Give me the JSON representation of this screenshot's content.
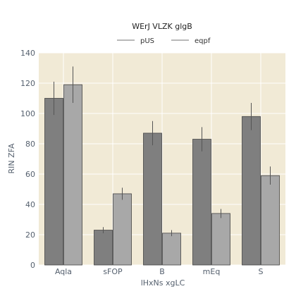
{
  "chart_data": {
    "type": "bar",
    "title": "WErJ VLZK glgB",
    "xlabel": "lHxNs xgLC",
    "ylabel": "RIN  ZFA",
    "categories": [
      "Aqla",
      "sFOP",
      "B",
      "mEq",
      "S"
    ],
    "ylim": [
      0,
      140
    ],
    "yticks": [
      0,
      20,
      40,
      60,
      80,
      100,
      120,
      140
    ],
    "grid": true,
    "legend_position": "top-center",
    "background_color": "#f1ead6",
    "series": [
      {
        "name": "pUS",
        "color": "#7f7f7f",
        "values": [
          110,
          23,
          87,
          83,
          98
        ],
        "errors": [
          11,
          2,
          8,
          8,
          9
        ]
      },
      {
        "name": "eqpf",
        "color": "#a8a8a8",
        "values": [
          119,
          47,
          21,
          34,
          59
        ],
        "errors": [
          12,
          4,
          2,
          3,
          6
        ]
      }
    ]
  }
}
